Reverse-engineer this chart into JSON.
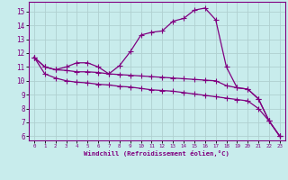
{
  "xlabel": "Windchill (Refroidissement éolien,°C)",
  "background_color": "#c8ecec",
  "line_color": "#800080",
  "grid_color": "#b0d0d0",
  "xlim": [
    -0.5,
    23.5
  ],
  "ylim": [
    5.7,
    15.7
  ],
  "yticks": [
    6,
    7,
    8,
    9,
    10,
    11,
    12,
    13,
    14,
    15
  ],
  "xticks": [
    0,
    1,
    2,
    3,
    4,
    5,
    6,
    7,
    8,
    9,
    10,
    11,
    12,
    13,
    14,
    15,
    16,
    17,
    18,
    19,
    20,
    21,
    22,
    23
  ],
  "line1_y": [
    11.7,
    11.0,
    10.8,
    11.0,
    11.3,
    11.3,
    11.0,
    10.5,
    11.1,
    12.1,
    13.3,
    13.5,
    13.6,
    14.3,
    14.5,
    15.1,
    15.25,
    14.4,
    11.0,
    9.5,
    9.4,
    8.7,
    7.1,
    6.0
  ],
  "line2_y": [
    11.7,
    11.0,
    10.8,
    10.75,
    10.65,
    10.65,
    10.6,
    10.5,
    10.45,
    10.4,
    10.35,
    10.3,
    10.25,
    10.2,
    10.15,
    10.1,
    10.05,
    10.0,
    9.65,
    9.5,
    9.4,
    8.7,
    7.1,
    6.0
  ],
  "line3_y": [
    11.7,
    10.5,
    10.2,
    10.0,
    9.9,
    9.85,
    9.75,
    9.7,
    9.6,
    9.55,
    9.45,
    9.35,
    9.3,
    9.25,
    9.15,
    9.05,
    8.95,
    8.85,
    8.75,
    8.65,
    8.55,
    8.0,
    7.1,
    6.0
  ],
  "markersize": 2.5,
  "linewidth": 0.9
}
